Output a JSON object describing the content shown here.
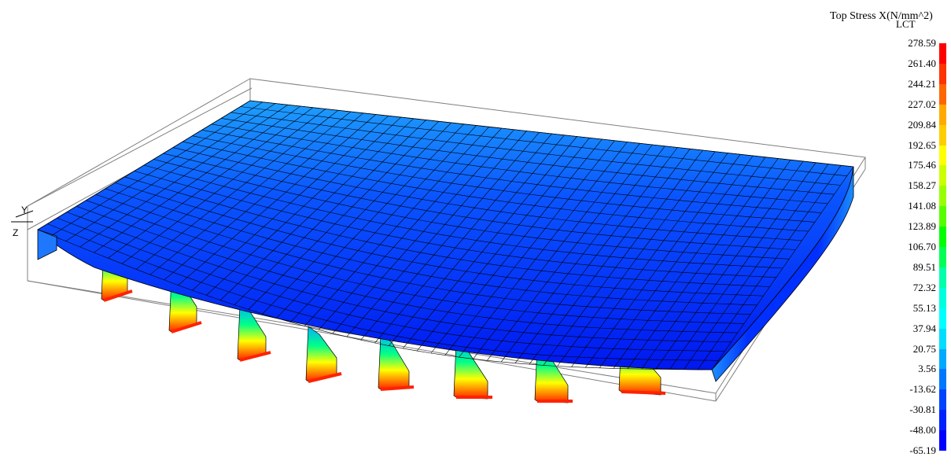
{
  "legend": {
    "title": "Top Stress X(N/mm^2)",
    "subtitle": "LCT",
    "labels": [
      "278.59",
      "261.40",
      "244.21",
      "227.02",
      "209.84",
      "192.65",
      "175.46",
      "158.27",
      "141.08",
      "123.89",
      "106.70",
      "89.51",
      "72.32",
      "55.13",
      "37.94",
      "20.75",
      "3.56",
      "-13.62",
      "-30.81",
      "-48.00",
      "-65.19"
    ],
    "colors": [
      "#ff0000",
      "#ff3300",
      "#ff6600",
      "#ffaa00",
      "#ffcc00",
      "#ffff00",
      "#ccff00",
      "#99ff00",
      "#55ff00",
      "#00ff00",
      "#00ff55",
      "#00ffaa",
      "#00ffdd",
      "#00ffff",
      "#00ddff",
      "#00aaff",
      "#0077ff",
      "#0044ff",
      "#0022ff",
      "#0000ff"
    ]
  },
  "axes": {
    "y_label": "Y",
    "z_label": "Z"
  },
  "colors": {
    "deck_light": "#1ea0ff",
    "deck_mid": "#0a55ff",
    "deck_dark": "#0018f0",
    "mesh_line": "#000000",
    "bbox_line": "#7f7f7f"
  }
}
